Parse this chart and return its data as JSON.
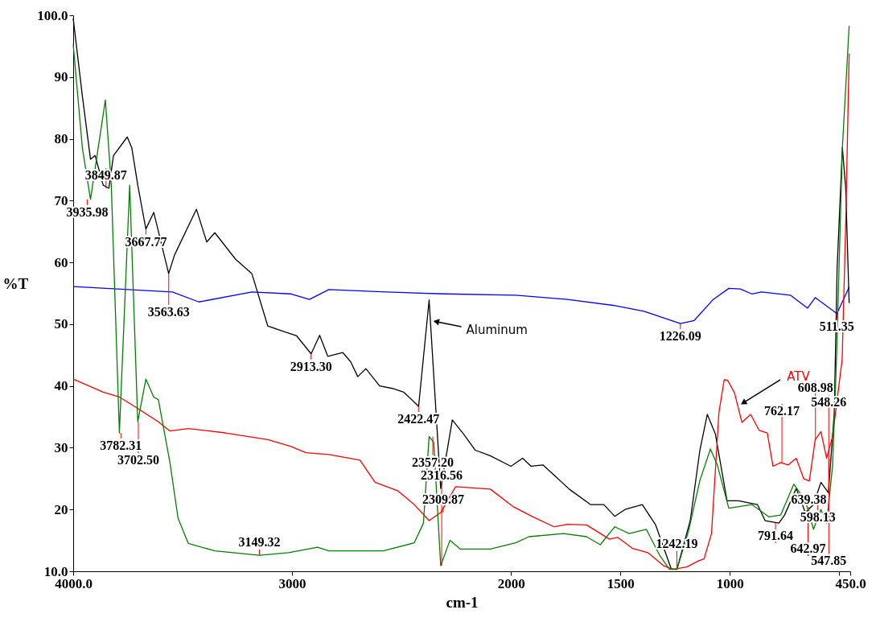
{
  "chart_data": {
    "type": "line",
    "xlabel": "cm-1",
    "ylabel": "%T",
    "xlim": [
      4000,
      450
    ],
    "xticks": [
      {
        "value": 4000,
        "label": "4000.0"
      },
      3000,
      2000,
      1500,
      1000,
      {
        "value": 500,
        "label": null
      },
      {
        "value": 450,
        "label": "450.0"
      }
    ],
    "ylim": [
      10,
      100
    ],
    "yticks": [
      {
        "value": 10,
        "label": "10.0"
      },
      20,
      30,
      40,
      50,
      60,
      70,
      80,
      90,
      {
        "value": 100,
        "label": "100.0"
      }
    ],
    "series": [
      {
        "color": "#0000ff",
        "x": [
          4000,
          3547,
          3426,
          3184,
          3005,
          2921,
          2832,
          2568,
          2305,
          1979,
          1742,
          1524,
          1392,
          1226,
          1163,
          1076,
          1005,
          953,
          900,
          855,
          724,
          645,
          610,
          511,
          455
        ],
        "values": [
          56.1,
          55.2,
          53.6,
          55.2,
          54.9,
          54,
          55.6,
          55.2,
          54.9,
          54.7,
          54,
          53,
          52.1,
          50.1,
          50.6,
          54,
          55.8,
          55.7,
          54.9,
          55.2,
          54.7,
          52.6,
          54.3,
          51.7,
          56
        ]
      },
      {
        "name": "Aluminum",
        "color": "#000000",
        "x": [
          4000,
          3958,
          3921,
          3900,
          3863,
          3837,
          3816,
          3753,
          3732,
          3705,
          3668,
          3632,
          3564,
          3537,
          3437,
          3390,
          3353,
          3258,
          3184,
          3111,
          3053,
          2979,
          2913,
          2874,
          2837,
          2768,
          2732,
          2700,
          2663,
          2600,
          2542,
          2490,
          2422,
          2374,
          2321,
          2268,
          2216,
          2163,
          2095,
          2000,
          1947,
          1908,
          1853,
          1795,
          1734,
          1637,
          1576,
          1526,
          1479,
          1400,
          1339,
          1268,
          1242,
          1181,
          1137,
          1103,
          1066,
          1013,
          960,
          874,
          839,
          776,
          750,
          697,
          655,
          618,
          584,
          550,
          523,
          510,
          486,
          471,
          455
        ],
        "values": [
          99.5,
          86.9,
          76.7,
          77.3,
          72.5,
          72,
          77.3,
          80.3,
          78.5,
          72.5,
          65.4,
          68.1,
          58.2,
          61.2,
          68.6,
          63.3,
          64.8,
          60.5,
          58.2,
          49.7,
          49,
          48.1,
          45.2,
          48.2,
          44.8,
          45.4,
          43.9,
          41.5,
          42.8,
          40,
          39.6,
          39,
          36.7,
          53.9,
          23.4,
          34.5,
          32.2,
          29.6,
          28.7,
          27,
          28.3,
          27,
          27.2,
          25.3,
          23.3,
          20.8,
          20.8,
          18.9,
          20,
          20.8,
          17.5,
          10.4,
          10.3,
          18.2,
          29.6,
          35.4,
          32.2,
          21.4,
          21.4,
          20.8,
          18.2,
          17.8,
          19.1,
          23.4,
          19.5,
          20.8,
          24.4,
          22.7,
          35.7,
          59.1,
          78.6,
          72.1,
          53.4
        ]
      },
      {
        "name": "ATV",
        "color": "#ff0000",
        "x": [
          4000,
          3863,
          3789,
          3716,
          3611,
          3558,
          3474,
          3305,
          3111,
          3005,
          2937,
          2832,
          2690,
          2621,
          2516,
          2442,
          2374,
          2321,
          2253,
          2095,
          1987,
          1900,
          1803,
          1742,
          1655,
          1550,
          1513,
          1445,
          1374,
          1303,
          1260,
          1197,
          1142,
          1118,
          1084,
          1050,
          1026,
          1010,
          979,
          945,
          905,
          866,
          829,
          803,
          768,
          734,
          697,
          663,
          637,
          610,
          584,
          558,
          531,
          487,
          471,
          455
        ],
        "values": [
          41.1,
          39,
          38.2,
          36.6,
          34.2,
          32.7,
          33.1,
          32.4,
          31.3,
          30.2,
          29.2,
          28.9,
          28,
          24.4,
          23,
          20.8,
          18.2,
          19.5,
          23.7,
          23.3,
          20.4,
          18.8,
          17.2,
          17.6,
          17.5,
          15.2,
          15.5,
          13.7,
          13,
          10.9,
          10.3,
          10.7,
          11.7,
          12,
          16.1,
          35.7,
          41,
          40.9,
          38.9,
          34.1,
          35.4,
          32.8,
          32.4,
          27,
          27.6,
          27.2,
          28.3,
          25,
          24.6,
          31.3,
          32.6,
          28.3,
          31.8,
          44.3,
          66,
          93.8
        ]
      },
      {
        "color": "#008000",
        "x": [
          4000,
          3958,
          3921,
          3853,
          3826,
          3789,
          3742,
          3705,
          3668,
          3632,
          3611,
          3558,
          3521,
          3474,
          3353,
          3149,
          3016,
          2884,
          2832,
          2584,
          2442,
          2400,
          2374,
          2353,
          2321,
          2279,
          2232,
          2095,
          1979,
          1918,
          1760,
          1655,
          1592,
          1526,
          1460,
          1382,
          1321,
          1276,
          1242,
          1189,
          1137,
          1089,
          1058,
          1005,
          953,
          900,
          821,
          768,
          708,
          655,
          618,
          584,
          558,
          531,
          513,
          486,
          455
        ],
        "values": [
          95.3,
          78.5,
          70.2,
          86.3,
          72.5,
          32.4,
          72.5,
          34.2,
          41.1,
          38.2,
          37.8,
          27.6,
          18.6,
          14.5,
          13.3,
          12.6,
          13,
          13.9,
          13.3,
          13.3,
          14.6,
          17.8,
          31.8,
          30.9,
          10.9,
          15,
          13.6,
          13.6,
          14.6,
          15.6,
          16.1,
          15.6,
          14.3,
          17.2,
          16.1,
          16.8,
          12.6,
          10.3,
          10.3,
          16.5,
          24.7,
          29.8,
          27.3,
          20.2,
          20.5,
          20.8,
          18.8,
          19.1,
          24.1,
          21.4,
          16.8,
          20,
          17.8,
          27,
          44.3,
          78.6,
          98.3
        ]
      }
    ],
    "annotations": [
      {
        "text": "3849.87",
        "x": 3849.87,
        "y": 72
      },
      {
        "text": "3935.98",
        "x": 3935.98,
        "y": 70.2
      },
      {
        "text": "3667.77",
        "x": 3667.77,
        "y": 65.4
      },
      {
        "text": "3563.63",
        "x": 3563.63,
        "y": 58.2
      },
      {
        "text": "3782.31",
        "x": 3782.31,
        "y": 32.4
      },
      {
        "text": "3702.50",
        "x": 3702.5,
        "y": 34.2
      },
      {
        "text": "3149.32",
        "x": 3149.32,
        "y": 12.6
      },
      {
        "text": "2913.30",
        "x": 2913.3,
        "y": 45.2
      },
      {
        "text": "2422.47",
        "x": 2422.47,
        "y": 36.7
      },
      {
        "text": "2357.20",
        "x": 2357.2,
        "y": 31.8
      },
      {
        "text": "2309.87",
        "x": 2309.87,
        "y": 19.5
      },
      {
        "text": "2316.56",
        "x": 2316.56,
        "y": 10.9
      },
      {
        "text": "1242.19",
        "x": 1242.19,
        "y": 10.3
      },
      {
        "text": "1226.09",
        "x": 1226.09,
        "y": 50.1
      },
      {
        "text": "762.17",
        "x": 762.17,
        "y": 27.6
      },
      {
        "text": "791.64",
        "x": 791.64,
        "y": 17.8
      },
      {
        "text": "642.97",
        "x": 642.97,
        "y": 19.9
      },
      {
        "text": "639.38",
        "x": 639.38,
        "y": 19.5
      },
      {
        "text": "608.98",
        "x": 608.98,
        "y": 31.3
      },
      {
        "text": "598.13",
        "x": 598.13,
        "y": 20.8
      },
      {
        "text": "547.85",
        "x": 547.85,
        "y": 28.3
      },
      {
        "text": "548.26",
        "x": 548.26,
        "y": 22.7
      },
      {
        "text": "511.35",
        "x": 511.35,
        "y": 51.7
      }
    ]
  }
}
